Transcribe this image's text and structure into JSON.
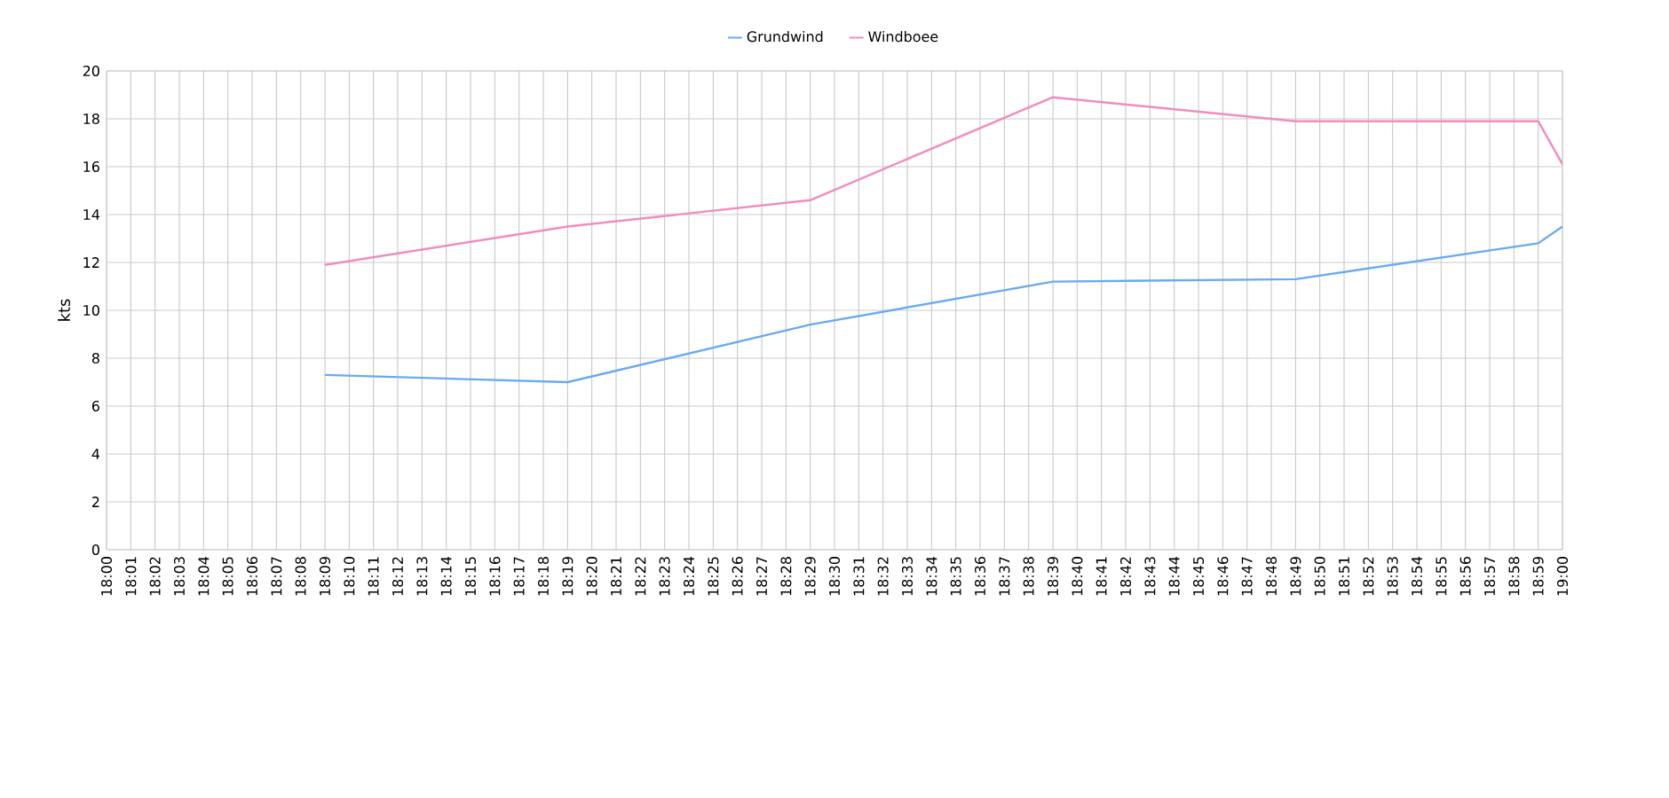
{
  "chart_data": {
    "type": "line",
    "ylabel": "kts",
    "xlim": [
      18,
      19
    ],
    "xticks": [
      {
        "value": 18,
        "label": "18:00"
      },
      {
        "value": 18.0167,
        "label": "18:01"
      },
      {
        "value": 18.0333,
        "label": "18:02"
      },
      {
        "value": 18.05,
        "label": "18:03"
      },
      {
        "value": 18.0667,
        "label": "18:04"
      },
      {
        "value": 18.0833,
        "label": "18:05"
      },
      {
        "value": 18.1,
        "label": "18:06"
      },
      {
        "value": 18.1167,
        "label": "18:07"
      },
      {
        "value": 18.1333,
        "label": "18:08"
      },
      {
        "value": 18.15,
        "label": "18:09"
      },
      {
        "value": 18.1667,
        "label": "18:10"
      },
      {
        "value": 18.1833,
        "label": "18:11"
      },
      {
        "value": 18.2,
        "label": "18:12"
      },
      {
        "value": 18.2167,
        "label": "18:13"
      },
      {
        "value": 18.2333,
        "label": "18:14"
      },
      {
        "value": 18.25,
        "label": "18:15"
      },
      {
        "value": 18.2667,
        "label": "18:16"
      },
      {
        "value": 18.2833,
        "label": "18:17"
      },
      {
        "value": 18.3,
        "label": "18:18"
      },
      {
        "value": 18.3167,
        "label": "18:19"
      },
      {
        "value": 18.3333,
        "label": "18:20"
      },
      {
        "value": 18.35,
        "label": "18:21"
      },
      {
        "value": 18.3667,
        "label": "18:22"
      },
      {
        "value": 18.3833,
        "label": "18:23"
      },
      {
        "value": 18.4,
        "label": "18:24"
      },
      {
        "value": 18.4167,
        "label": "18:25"
      },
      {
        "value": 18.4333,
        "label": "18:26"
      },
      {
        "value": 18.45,
        "label": "18:27"
      },
      {
        "value": 18.4667,
        "label": "18:28"
      },
      {
        "value": 18.4833,
        "label": "18:29"
      },
      {
        "value": 18.5,
        "label": "18:30"
      },
      {
        "value": 18.5167,
        "label": "18:31"
      },
      {
        "value": 18.5333,
        "label": "18:32"
      },
      {
        "value": 18.55,
        "label": "18:33"
      },
      {
        "value": 18.5667,
        "label": "18:34"
      },
      {
        "value": 18.5833,
        "label": "18:35"
      },
      {
        "value": 18.6,
        "label": "18:36"
      },
      {
        "value": 18.6167,
        "label": "18:37"
      },
      {
        "value": 18.6333,
        "label": "18:38"
      },
      {
        "value": 18.65,
        "label": "18:39"
      },
      {
        "value": 18.6667,
        "label": "18:40"
      },
      {
        "value": 18.6833,
        "label": "18:41"
      },
      {
        "value": 18.7,
        "label": "18:42"
      },
      {
        "value": 18.7167,
        "label": "18:43"
      },
      {
        "value": 18.7333,
        "label": "18:44"
      },
      {
        "value": 18.75,
        "label": "18:45"
      },
      {
        "value": 18.7667,
        "label": "18:46"
      },
      {
        "value": 18.7833,
        "label": "18:47"
      },
      {
        "value": 18.8,
        "label": "18:48"
      },
      {
        "value": 18.8167,
        "label": "18:49"
      },
      {
        "value": 18.8333,
        "label": "18:50"
      },
      {
        "value": 18.85,
        "label": "18:51"
      },
      {
        "value": 18.8667,
        "label": "18:52"
      },
      {
        "value": 18.8833,
        "label": "18:53"
      },
      {
        "value": 18.9,
        "label": "18:54"
      },
      {
        "value": 18.9167,
        "label": "18:55"
      },
      {
        "value": 18.9333,
        "label": "18:56"
      },
      {
        "value": 18.95,
        "label": "18:57"
      },
      {
        "value": 18.9667,
        "label": "18:58"
      },
      {
        "value": 18.9833,
        "label": "18:59"
      },
      {
        "value": 19,
        "label": "19:00"
      }
    ],
    "ylim": [
      0,
      20
    ],
    "yticks": [
      0,
      2,
      4,
      6,
      8,
      10,
      12,
      14,
      16,
      18,
      20
    ],
    "x": [
      18.15,
      18.3167,
      18.4833,
      18.65,
      18.8167,
      18.9833,
      19
    ],
    "series": [
      {
        "name": "Grundwind",
        "color": "#6aaaf0",
        "values": [
          7.3,
          7.0,
          9.4,
          11.2,
          11.3,
          12.8,
          13.5
        ]
      },
      {
        "name": "Windboee",
        "color": "#f08cbf",
        "values": [
          11.9,
          13.5,
          14.6,
          18.9,
          17.9,
          17.9,
          16.1
        ]
      }
    ],
    "grid": true,
    "legend": "top"
  }
}
